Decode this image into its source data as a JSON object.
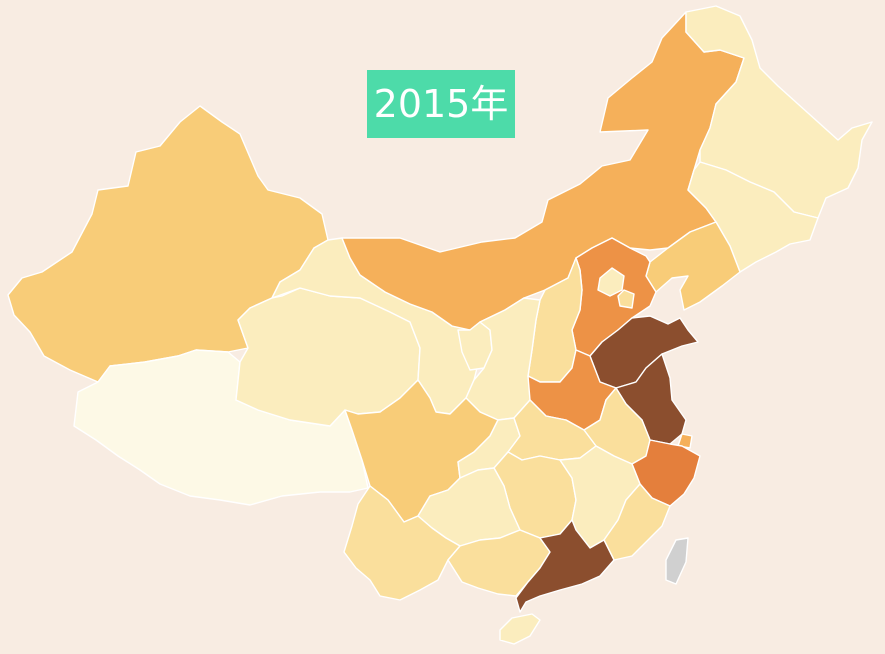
{
  "year_label": "2015年",
  "colors": {
    "background": "#f8ece2",
    "badge": "#4ddba9",
    "badge_text": "#ffffff",
    "border": "#ffffff",
    "levels": [
      "#fdf9e6",
      "#fbedbe",
      "#fadf9c",
      "#f8cc78",
      "#f5b05a",
      "#ed9246",
      "#e47f3c",
      "#8b4e2e"
    ],
    "no_data": "#d0d0d0"
  },
  "map": {
    "type": "choropleth",
    "region": "China",
    "provinces": [
      {
        "id": "xinjiang",
        "level": 3
      },
      {
        "id": "tibet",
        "level": 0
      },
      {
        "id": "qinghai",
        "level": 1
      },
      {
        "id": "gansu",
        "level": 1
      },
      {
        "id": "inner-mongolia",
        "level": 4
      },
      {
        "id": "heilongjiang",
        "level": 1
      },
      {
        "id": "jilin",
        "level": 1
      },
      {
        "id": "liaoning",
        "level": 3
      },
      {
        "id": "hebei",
        "level": 5
      },
      {
        "id": "beijing",
        "level": 1
      },
      {
        "id": "tianjin",
        "level": 2
      },
      {
        "id": "shanxi",
        "level": 2
      },
      {
        "id": "shaanxi",
        "level": 1
      },
      {
        "id": "ningxia",
        "level": 1
      },
      {
        "id": "shandong",
        "level": 7
      },
      {
        "id": "henan",
        "level": 5
      },
      {
        "id": "jiangsu",
        "level": 7
      },
      {
        "id": "anhui",
        "level": 2
      },
      {
        "id": "shanghai",
        "level": 4
      },
      {
        "id": "zhejiang",
        "level": 6
      },
      {
        "id": "sichuan",
        "level": 3
      },
      {
        "id": "chongqing",
        "level": 1
      },
      {
        "id": "hubei",
        "level": 2
      },
      {
        "id": "hunan",
        "level": 2
      },
      {
        "id": "jiangxi",
        "level": 1
      },
      {
        "id": "fujian",
        "level": 2
      },
      {
        "id": "guizhou",
        "level": 1
      },
      {
        "id": "yunnan",
        "level": 2
      },
      {
        "id": "guangxi",
        "level": 2
      },
      {
        "id": "guangdong",
        "level": 7
      },
      {
        "id": "hainan",
        "level": 1
      },
      {
        "id": "taiwan",
        "level": null
      }
    ]
  }
}
